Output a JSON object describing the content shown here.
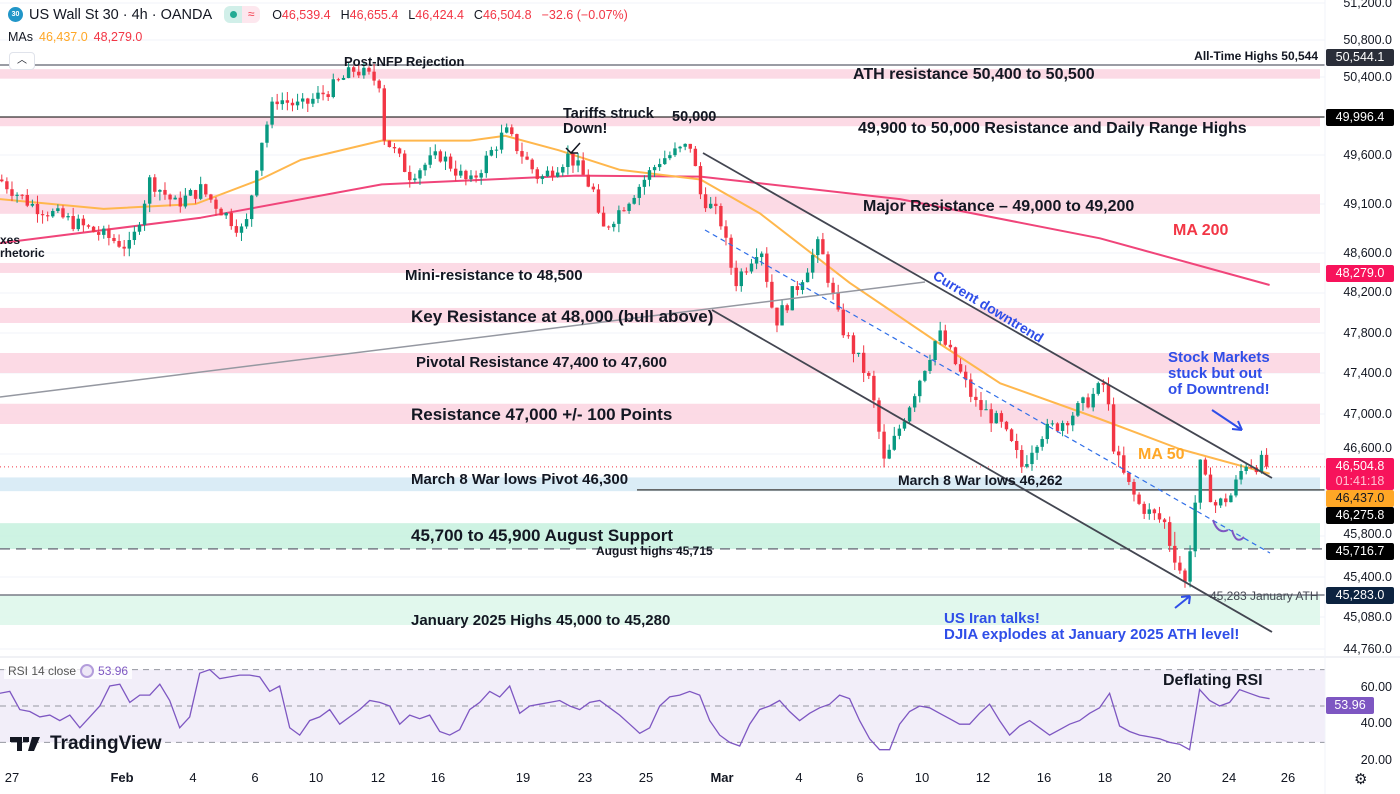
{
  "header": {
    "symbol_badge": "30",
    "title": "US Wall St 30 · 4h · OANDA",
    "open_label": "O",
    "open": "46,539.4",
    "high_label": "H",
    "high": "46,655.4",
    "low_label": "L",
    "low": "46,424.4",
    "close_label": "C",
    "close": "46,504.8",
    "change": "−32.6 (−0.07%)",
    "mas_label": "MAs",
    "ma50_value": "46,437.0",
    "ma200_value": "48,279.0"
  },
  "colors": {
    "up": "#089981",
    "down": "#f23645",
    "ma50": "#ffb74d",
    "ma200": "#f0457a",
    "rsi": "#7e57c2",
    "resistance_zone": "#fbd3e0",
    "pivot_zone": "#d3e9f4",
    "support_zone": "#c5f1de",
    "annotation_blue": "#2f4ee8"
  },
  "annotations": {
    "post_nfp": "Post-NFP Rejection",
    "tariffs": "Tariffs struck\nDown!",
    "fifty_k": "50,000",
    "ath_line": "All-Time Highs 50,544",
    "ath_zone": "ATH resistance 50,400 to 50,500",
    "daily_highs": "49,900 to 50,000 Resistance and Daily Range Highs",
    "major_res": "Major Resistance – 49,000 to 49,200",
    "ma200": "MA 200",
    "left_cut_1": "xes",
    "left_cut_2": "rhetoric",
    "mini_res": "Mini-resistance to 48,500",
    "key_res": "Key Resistance at 48,000 (bull above)",
    "downtrend": "Current downtrend",
    "pivotal": "Pivotal Resistance 47,400 to 47,600",
    "stuck_1": "Stock Markets",
    "stuck_2": "stuck but out",
    "stuck_3": "of Downtrend!",
    "res_47k": "Resistance 47,000 +/- 100 Points",
    "ma50": "MA 50",
    "war_pivot": "March 8 War lows Pivot 46,300",
    "war_lows": "March 8 War lows 46,262",
    "aug_support": "45,700 to 45,900 August Support",
    "aug_highs": "August highs 45,715",
    "jan_ath": "45,283 January ATH",
    "jan_zone": "January 2025 Highs 45,000 to 45,280",
    "iran_1": "US Iran talks!",
    "iran_2": "DJIA explodes at January 2025 ATH level!",
    "rsi_note": "Deflating RSI"
  },
  "price_labels": {
    "ath": "50,544.1",
    "daily_high": "49,996.4",
    "ma200": "48,279.0",
    "last": "46,504.8",
    "countdown": "01:41:18",
    "ma50": "46,437.0",
    "war_low": "46,275.8",
    "aug_high": "45,716.7",
    "jan_ath": "45,283.0",
    "rsi": "53.96"
  },
  "rsi_header": {
    "label": "RSI 14 close",
    "value": "53.96"
  },
  "logo": "TradingView",
  "chart_data": {
    "type": "candlestick",
    "title": "US Wall St 30 · 4h · OANDA",
    "y_ticks": [
      "51,200.0",
      "50,800.0",
      "50,400.0",
      "49,600.0",
      "49,100.0",
      "48,600.0",
      "48,200.0",
      "47,800.0",
      "47,400.0",
      "47,000.0",
      "46,600.0",
      "45,800.0",
      "45,400.0",
      "45,080.0",
      "44,760.0"
    ],
    "x_ticks": [
      {
        "label": "27",
        "date": "01-27"
      },
      {
        "label": "Feb",
        "date": "02-02"
      },
      {
        "label": "4",
        "date": "02-04"
      },
      {
        "label": "6",
        "date": "02-06"
      },
      {
        "label": "10",
        "date": "02-10"
      },
      {
        "label": "12",
        "date": "02-12"
      },
      {
        "label": "16",
        "date": "02-16"
      },
      {
        "label": "19",
        "date": "02-19"
      },
      {
        "label": "23",
        "date": "02-23"
      },
      {
        "label": "25",
        "date": "02-25"
      },
      {
        "label": "Mar",
        "date": "03-02"
      },
      {
        "label": "4",
        "date": "03-04"
      },
      {
        "label": "6",
        "date": "03-06"
      },
      {
        "label": "10",
        "date": "03-10"
      },
      {
        "label": "12",
        "date": "03-12"
      },
      {
        "label": "16",
        "date": "03-16"
      },
      {
        "label": "18",
        "date": "03-18"
      },
      {
        "label": "20",
        "date": "03-20"
      },
      {
        "label": "24",
        "date": "03-24"
      },
      {
        "label": "26",
        "date": "03-26"
      }
    ],
    "price_path": [
      [
        "01-26 08",
        49350
      ],
      [
        "01-28 00",
        49100
      ],
      [
        "02-01 08",
        48750
      ],
      [
        "02-02 06",
        48650
      ],
      [
        "02-02 19",
        49350
      ],
      [
        "02-03 12",
        49100
      ],
      [
        "02-04 06",
        49250
      ],
      [
        "02-05 16",
        48800
      ],
      [
        "02-06 08",
        49700
      ],
      [
        "02-07 08",
        50200
      ],
      [
        "02-09 00",
        50100
      ],
      [
        "02-10 12",
        50300
      ],
      [
        "02-11 06",
        50500
      ],
      [
        "02-12 06",
        50350
      ],
      [
        "02-12 09",
        49800
      ],
      [
        "02-14 02",
        49400
      ],
      [
        "02-16 02",
        49600
      ],
      [
        "02-17 03",
        49300
      ],
      [
        "02-18 09",
        49850
      ],
      [
        "02-20 02",
        49350
      ],
      [
        "02-22 00",
        49600
      ],
      [
        "02-23 08",
        49200
      ],
      [
        "02-23 12",
        48800
      ],
      [
        "02-24 07",
        49100
      ],
      [
        "02-25 22",
        49550
      ],
      [
        "02-27 22",
        49700
      ],
      [
        "02-28 14",
        49200
      ],
      [
        "03-01 21",
        48950
      ],
      [
        "03-02 08",
        48300
      ],
      [
        "03-03 00",
        48700
      ],
      [
        "03-03 09",
        47900
      ],
      [
        "03-04 00",
        48300
      ],
      [
        "03-04 16",
        48700
      ],
      [
        "03-05 08",
        47900
      ],
      [
        "03-06 16",
        47300
      ],
      [
        "03-07 14",
        46500
      ],
      [
        "03-08 22",
        47000
      ],
      [
        "03-10 13",
        47800
      ],
      [
        "03-10 22",
        47600
      ],
      [
        "03-11 18",
        47100
      ],
      [
        "03-13 03",
        46900
      ],
      [
        "03-14 12",
        46500
      ],
      [
        "03-15 18",
        46800
      ],
      [
        "03-16 12",
        46900
      ],
      [
        "03-17 08",
        47100
      ],
      [
        "03-18 00",
        47300
      ],
      [
        "03-18 08",
        46600
      ],
      [
        "03-19 04",
        46100
      ],
      [
        "03-20 01",
        45900
      ],
      [
        "03-21 07",
        45350
      ],
      [
        "03-22 05",
        46500
      ],
      [
        "03-23 03",
        46100
      ],
      [
        "03-24 01",
        46200
      ],
      [
        "03-24 13",
        46550
      ],
      [
        "03-25 09",
        46505
      ]
    ],
    "ma50": [
      [
        "01-26 08",
        49150
      ],
      [
        "02-01 00",
        49050
      ],
      [
        "02-04 02",
        49100
      ],
      [
        "02-06 08",
        49350
      ],
      [
        "02-09 00",
        49550
      ],
      [
        "02-12 06",
        49750
      ],
      [
        "02-17 03",
        49750
      ],
      [
        "02-18 09",
        49800
      ],
      [
        "02-21 07",
        49650
      ],
      [
        "02-24 03",
        49450
      ],
      [
        "02-28 14",
        49350
      ],
      [
        "03-03 00",
        49000
      ],
      [
        "03-05 16",
        48300
      ],
      [
        "03-10 13",
        47700
      ],
      [
        "03-13 03",
        47300
      ],
      [
        "03-17 20",
        46950
      ],
      [
        "03-20 23",
        46650
      ],
      [
        "03-25 09",
        46437
      ]
    ],
    "ma200": [
      [
        "01-26 08",
        48700
      ],
      [
        "02-04 06",
        48960
      ],
      [
        "02-12 06",
        49300
      ],
      [
        "02-22 10",
        49390
      ],
      [
        "02-28 14",
        49380
      ],
      [
        "03-08 14",
        49150
      ],
      [
        "03-17 20",
        48750
      ],
      [
        "03-25 09",
        48279
      ]
    ],
    "rsi": {
      "label": "RSI 14 close",
      "bands": [
        30,
        50,
        70
      ],
      "y_ticks": [
        "60.00",
        "40.00",
        "20.00"
      ],
      "values": [
        57,
        58,
        48,
        47,
        44,
        45,
        42,
        45,
        38,
        44,
        50,
        61,
        62,
        52,
        56,
        56,
        62,
        53,
        38,
        44,
        68,
        70,
        65,
        66,
        67,
        67,
        66,
        58,
        61,
        38,
        34,
        42,
        44,
        48,
        40,
        44,
        48,
        53,
        52,
        50,
        40,
        45,
        43,
        45,
        36,
        34,
        37,
        48,
        52,
        58,
        55,
        61,
        46,
        50,
        51,
        52,
        53,
        50,
        48,
        52,
        53,
        49,
        45,
        40,
        35,
        38,
        50,
        55,
        56,
        58,
        56,
        42,
        34,
        30,
        28,
        40,
        48,
        50,
        53,
        47,
        42,
        46,
        49,
        51,
        56,
        54,
        42,
        32,
        26,
        26,
        40,
        47,
        50,
        49,
        46,
        43,
        40,
        40,
        46,
        51,
        42,
        34,
        39,
        42,
        38,
        34,
        37,
        40,
        42,
        46,
        49,
        57,
        39,
        36,
        34,
        33,
        32,
        30,
        29,
        26,
        59,
        53,
        50,
        52,
        59,
        57,
        55,
        54
      ]
    },
    "levels": {
      "ath": 50544.1,
      "daily_high": 49996.4,
      "last": 46504.8,
      "war_low": 46275.8,
      "aug_high": 45716.7,
      "jan_ath": 45283.0
    },
    "zones": [
      {
        "name": "ath-resistance",
        "low": 50400,
        "high": 50500,
        "kind": "resistance"
      },
      {
        "name": "daily-range-highs",
        "low": 49900,
        "high": 50000,
        "kind": "resistance"
      },
      {
        "name": "major-resistance",
        "low": 49000,
        "high": 49200,
        "kind": "resistance"
      },
      {
        "name": "mini-resistance",
        "low": 48400,
        "high": 48500,
        "kind": "resistance"
      },
      {
        "name": "key-resistance",
        "low": 47900,
        "high": 48050,
        "kind": "resistance"
      },
      {
        "name": "pivotal-resistance",
        "low": 47400,
        "high": 47600,
        "kind": "resistance"
      },
      {
        "name": "resistance-47000",
        "low": 46900,
        "high": 47100,
        "kind": "resistance"
      },
      {
        "name": "war-lows-pivot",
        "low": 46262,
        "high": 46400,
        "kind": "pivot"
      },
      {
        "name": "august-support",
        "low": 45716,
        "high": 45900,
        "kind": "support"
      },
      {
        "name": "january-2025-highs",
        "low": 45000,
        "high": 45280,
        "kind": "support_light"
      }
    ]
  }
}
